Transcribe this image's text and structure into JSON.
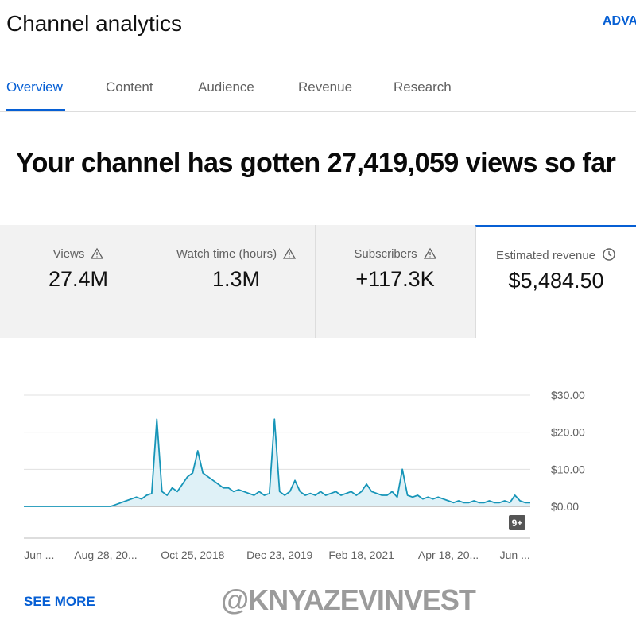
{
  "header": {
    "title": "Channel analytics",
    "action": "ADVA"
  },
  "tabs": [
    "Overview",
    "Content",
    "Audience",
    "Revenue",
    "Research"
  ],
  "headline": "Your channel has gotten 27,419,059 views so far",
  "cards": [
    {
      "label": "Views",
      "value": "27.4M"
    },
    {
      "label": "Watch time (hours)",
      "value": "1.3M"
    },
    {
      "label": "Subscribers",
      "value": "+117.3K"
    },
    {
      "label": "Estimated revenue",
      "value": "$5,484.50"
    }
  ],
  "chart_data": {
    "type": "line",
    "categories": [
      null,
      null,
      null,
      "Jun ...",
      null,
      null,
      null,
      null,
      null,
      null,
      null,
      null,
      null,
      null,
      null,
      null,
      "Aug 28, 20...",
      null,
      null,
      null,
      null,
      null,
      null,
      null,
      null,
      null,
      null,
      null,
      null,
      null,
      null,
      null,
      null,
      "Oct 25, 2018",
      null,
      null,
      null,
      null,
      null,
      null,
      null,
      null,
      null,
      null,
      null,
      null,
      null,
      null,
      null,
      null,
      "Dec 23, 2019",
      null,
      null,
      null,
      null,
      null,
      null,
      null,
      null,
      null,
      null,
      null,
      null,
      null,
      null,
      null,
      "Feb 18, 2021",
      null,
      null,
      null,
      null,
      null,
      null,
      null,
      null,
      null,
      null,
      null,
      null,
      null,
      null,
      null,
      null,
      "Apr 18, 20...",
      null,
      null,
      null,
      null,
      null,
      null,
      null,
      null,
      null,
      null,
      null,
      null,
      "Jun ...",
      null,
      null,
      null
    ],
    "series": [
      {
        "color": "#1795b8",
        "fill": "#dff1f7",
        "values": [
          0,
          0,
          0,
          0,
          0,
          0,
          0,
          0,
          0,
          0,
          0,
          0,
          0,
          0,
          0,
          0,
          0,
          0,
          0.5,
          1,
          1.5,
          2,
          2.5,
          2,
          3,
          3.5,
          23.5,
          4,
          3,
          5,
          4,
          6,
          8,
          9,
          15,
          9,
          8,
          7,
          6,
          5,
          5,
          4,
          4.5,
          4,
          3.5,
          3,
          4,
          3,
          3.5,
          23.5,
          4,
          3,
          4,
          7,
          4,
          3,
          3.5,
          3,
          4,
          3,
          3.5,
          4,
          3,
          3.5,
          4,
          3,
          4,
          6,
          4,
          3.5,
          3,
          3,
          4,
          2.5,
          10,
          3,
          2.5,
          3,
          2,
          2.5,
          2,
          2.5,
          2,
          1.5,
          1,
          1.5,
          1,
          1,
          1.5,
          1,
          1,
          1.5,
          1,
          1,
          1.5,
          1,
          3,
          1.5,
          1,
          1
        ]
      }
    ],
    "ylim": [
      0,
      30
    ],
    "yticks": [
      {
        "value": 0,
        "label": "$0.00"
      },
      {
        "value": 10,
        "label": "$10.00"
      },
      {
        "value": 20,
        "label": "$20.00"
      },
      {
        "value": 30,
        "label": "$30.00"
      }
    ],
    "grid": true,
    "badge": "9+"
  },
  "see_more": "SEE MORE",
  "watermark": "@KNYAZEVINVEST"
}
